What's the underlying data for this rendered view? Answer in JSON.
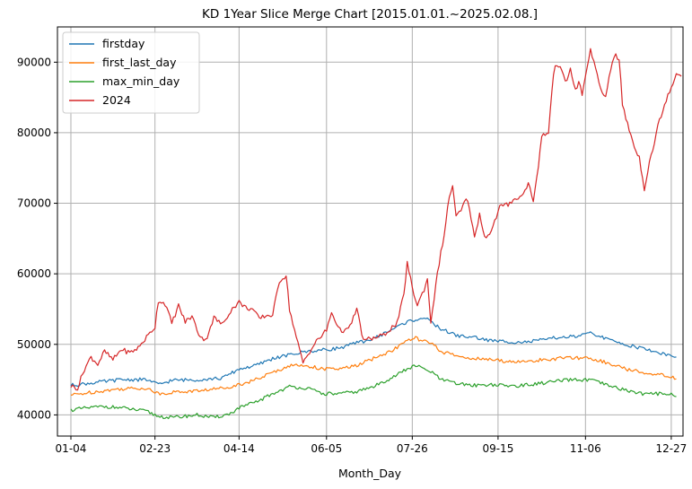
{
  "chart_data": {
    "type": "line",
    "title": "KD 1Year Slice Merge Chart [2015.01.01.~2025.02.08.]",
    "xlabel": "Month_Day",
    "ylabel": "",
    "x_ticks": [
      "01-04",
      "02-23",
      "04-14",
      "06-05",
      "07-26",
      "09-15",
      "11-06",
      "12-27"
    ],
    "x_tick_index": [
      0,
      50,
      100,
      152,
      203,
      254,
      306,
      357
    ],
    "x_range": [
      -8,
      364
    ],
    "ylim": [
      37000,
      95000
    ],
    "y_ticks": [
      40000,
      50000,
      60000,
      70000,
      80000,
      90000
    ],
    "grid": true,
    "legend": "top-left",
    "series": [
      {
        "name": "firstday",
        "color": "#1f77b4",
        "points": [
          [
            0,
            44200
          ],
          [
            15,
            44600
          ],
          [
            30,
            45000
          ],
          [
            45,
            45000
          ],
          [
            52,
            44300
          ],
          [
            60,
            44900
          ],
          [
            75,
            45000
          ],
          [
            90,
            45200
          ],
          [
            100,
            46500
          ],
          [
            110,
            47000
          ],
          [
            120,
            48000
          ],
          [
            130,
            48500
          ],
          [
            140,
            49000
          ],
          [
            150,
            49200
          ],
          [
            160,
            49500
          ],
          [
            170,
            50200
          ],
          [
            180,
            50800
          ],
          [
            190,
            52000
          ],
          [
            200,
            53200
          ],
          [
            210,
            53800
          ],
          [
            215,
            53000
          ],
          [
            220,
            52200
          ],
          [
            230,
            51200
          ],
          [
            240,
            51000
          ],
          [
            250,
            50500
          ],
          [
            260,
            50400
          ],
          [
            270,
            50300
          ],
          [
            280,
            50600
          ],
          [
            290,
            51000
          ],
          [
            300,
            51100
          ],
          [
            310,
            51600
          ],
          [
            320,
            50600
          ],
          [
            330,
            50000
          ],
          [
            340,
            49400
          ],
          [
            350,
            48800
          ],
          [
            355,
            48500
          ],
          [
            360,
            48200
          ]
        ]
      },
      {
        "name": "first_last_day",
        "color": "#ff7f0e",
        "points": [
          [
            0,
            42800
          ],
          [
            15,
            43300
          ],
          [
            30,
            43700
          ],
          [
            45,
            43800
          ],
          [
            52,
            43000
          ],
          [
            60,
            43200
          ],
          [
            75,
            43400
          ],
          [
            90,
            43800
          ],
          [
            100,
            44300
          ],
          [
            110,
            45000
          ],
          [
            120,
            46000
          ],
          [
            130,
            47000
          ],
          [
            140,
            47000
          ],
          [
            150,
            46500
          ],
          [
            160,
            46500
          ],
          [
            170,
            47000
          ],
          [
            180,
            48000
          ],
          [
            190,
            49000
          ],
          [
            200,
            50500
          ],
          [
            205,
            50900
          ],
          [
            215,
            50000
          ],
          [
            220,
            49000
          ],
          [
            230,
            48300
          ],
          [
            240,
            48000
          ],
          [
            250,
            47800
          ],
          [
            260,
            47600
          ],
          [
            270,
            47500
          ],
          [
            280,
            47800
          ],
          [
            290,
            48000
          ],
          [
            300,
            48100
          ],
          [
            310,
            48000
          ],
          [
            320,
            47300
          ],
          [
            330,
            46500
          ],
          [
            340,
            46000
          ],
          [
            350,
            45800
          ],
          [
            355,
            45500
          ],
          [
            360,
            45100
          ]
        ]
      },
      {
        "name": "max_min_day",
        "color": "#2ca02c",
        "points": [
          [
            0,
            40700
          ],
          [
            10,
            41000
          ],
          [
            20,
            41200
          ],
          [
            30,
            41000
          ],
          [
            45,
            40500
          ],
          [
            52,
            39800
          ],
          [
            60,
            39600
          ],
          [
            75,
            40000
          ],
          [
            85,
            39600
          ],
          [
            95,
            40200
          ],
          [
            100,
            41000
          ],
          [
            110,
            41800
          ],
          [
            120,
            43000
          ],
          [
            130,
            44000
          ],
          [
            140,
            43800
          ],
          [
            150,
            43000
          ],
          [
            160,
            43000
          ],
          [
            170,
            43300
          ],
          [
            180,
            44000
          ],
          [
            190,
            45200
          ],
          [
            200,
            46500
          ],
          [
            205,
            47000
          ],
          [
            215,
            46000
          ],
          [
            220,
            45000
          ],
          [
            230,
            44400
          ],
          [
            240,
            44200
          ],
          [
            250,
            44300
          ],
          [
            260,
            44100
          ],
          [
            270,
            44200
          ],
          [
            280,
            44500
          ],
          [
            290,
            44800
          ],
          [
            300,
            45000
          ],
          [
            310,
            44900
          ],
          [
            320,
            44100
          ],
          [
            330,
            43500
          ],
          [
            340,
            43000
          ],
          [
            350,
            43000
          ],
          [
            355,
            43100
          ],
          [
            360,
            42600
          ]
        ]
      },
      {
        "name": "2024",
        "color": "#d62728",
        "points": [
          [
            0,
            44100
          ],
          [
            4,
            43800
          ],
          [
            8,
            46500
          ],
          [
            12,
            48200
          ],
          [
            16,
            47200
          ],
          [
            20,
            49000
          ],
          [
            25,
            47800
          ],
          [
            30,
            49300
          ],
          [
            35,
            48800
          ],
          [
            40,
            49500
          ],
          [
            45,
            51000
          ],
          [
            50,
            52500
          ],
          [
            52,
            56200
          ],
          [
            56,
            55800
          ],
          [
            60,
            53000
          ],
          [
            64,
            55500
          ],
          [
            68,
            53200
          ],
          [
            72,
            54000
          ],
          [
            76,
            51500
          ],
          [
            80,
            50500
          ],
          [
            85,
            53800
          ],
          [
            90,
            52800
          ],
          [
            95,
            54800
          ],
          [
            100,
            56000
          ],
          [
            104,
            55200
          ],
          [
            108,
            55000
          ],
          [
            112,
            53600
          ],
          [
            115,
            54000
          ],
          [
            120,
            54200
          ],
          [
            124,
            59000
          ],
          [
            128,
            59800
          ],
          [
            130,
            55000
          ],
          [
            134,
            51000
          ],
          [
            138,
            47400
          ],
          [
            142,
            49000
          ],
          [
            146,
            50400
          ],
          [
            152,
            52000
          ],
          [
            155,
            54500
          ],
          [
            160,
            52000
          ],
          [
            165,
            52000
          ],
          [
            170,
            55000
          ],
          [
            174,
            50500
          ],
          [
            178,
            50800
          ],
          [
            182,
            51000
          ],
          [
            186,
            51300
          ],
          [
            190,
            52200
          ],
          [
            194,
            53000
          ],
          [
            198,
            57000
          ],
          [
            200,
            61600
          ],
          [
            203,
            58000
          ],
          [
            206,
            55500
          ],
          [
            210,
            57800
          ],
          [
            212,
            59200
          ],
          [
            214,
            53200
          ],
          [
            218,
            60000
          ],
          [
            220,
            63000
          ],
          [
            222,
            65500
          ],
          [
            225,
            71000
          ],
          [
            227,
            72500
          ],
          [
            229,
            68000
          ],
          [
            232,
            69000
          ],
          [
            235,
            70500
          ],
          [
            237,
            69500
          ],
          [
            240,
            65000
          ],
          [
            243,
            68500
          ],
          [
            246,
            65200
          ],
          [
            250,
            66000
          ],
          [
            255,
            69500
          ],
          [
            260,
            69800
          ],
          [
            264,
            70800
          ],
          [
            266,
            70600
          ],
          [
            268,
            71000
          ],
          [
            270,
            72000
          ],
          [
            272,
            72800
          ],
          [
            275,
            70500
          ],
          [
            278,
            75000
          ],
          [
            280,
            79700
          ],
          [
            284,
            79900
          ],
          [
            286,
            86000
          ],
          [
            288,
            89800
          ],
          [
            291,
            89500
          ],
          [
            294,
            87000
          ],
          [
            297,
            89000
          ],
          [
            300,
            86000
          ],
          [
            302,
            87200
          ],
          [
            304,
            85500
          ],
          [
            306,
            87800
          ],
          [
            309,
            92000
          ],
          [
            312,
            89000
          ],
          [
            315,
            86000
          ],
          [
            318,
            85000
          ],
          [
            320,
            88000
          ],
          [
            323,
            91000
          ],
          [
            326,
            90500
          ],
          [
            328,
            84000
          ],
          [
            330,
            82000
          ],
          [
            332,
            80500
          ],
          [
            335,
            78000
          ],
          [
            338,
            76500
          ],
          [
            341,
            72000
          ],
          [
            344,
            76000
          ],
          [
            347,
            78500
          ],
          [
            350,
            82000
          ],
          [
            352,
            83000
          ],
          [
            355,
            85500
          ],
          [
            358,
            87000
          ],
          [
            360,
            88500
          ],
          [
            363,
            88000
          ]
        ]
      }
    ]
  }
}
